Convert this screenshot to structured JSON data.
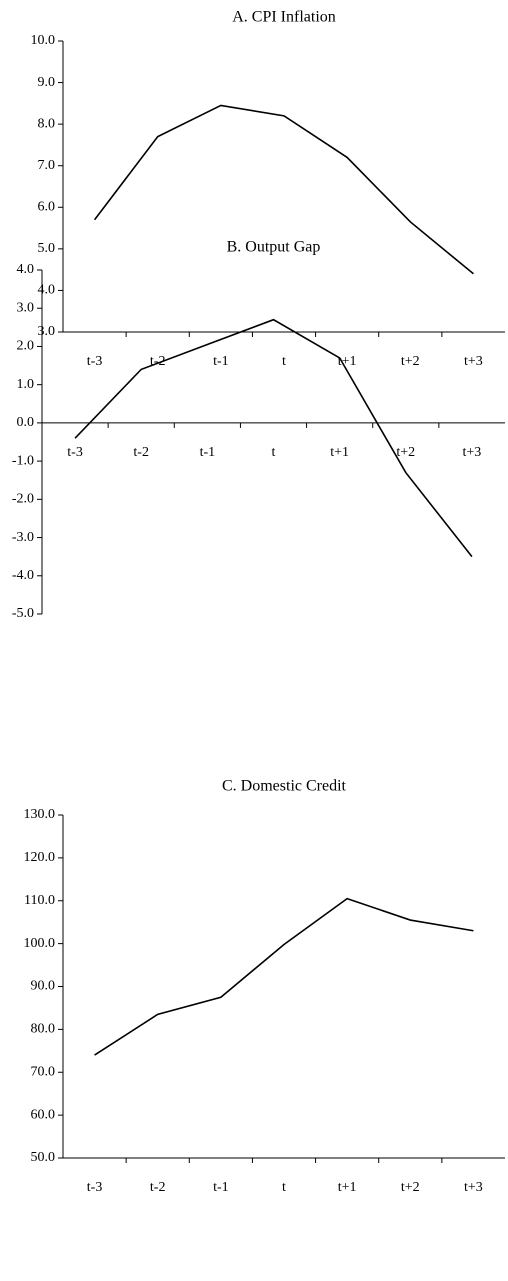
{
  "chart_data": [
    {
      "type": "line",
      "title": "A. CPI Inflation",
      "categories": [
        "t-3",
        "t-2",
        "t-1",
        "t",
        "t+1",
        "t+2",
        "t+3"
      ],
      "series": [
        {
          "name": "CPI Inflation",
          "color": "#000000",
          "values": [
            5.7,
            7.7,
            8.45,
            8.2,
            7.2,
            5.65,
            4.4
          ]
        }
      ],
      "ylim": [
        3,
        10
      ],
      "yticks": [
        {
          "value": 3,
          "label": "3.0"
        },
        {
          "value": 4,
          "label": "4.0"
        },
        {
          "value": 5,
          "label": "5.0"
        },
        {
          "value": 6,
          "label": "6.0"
        },
        {
          "value": 7,
          "label": "7.0"
        },
        {
          "value": 8,
          "label": "8.0"
        },
        {
          "value": 9,
          "label": "9.0"
        },
        {
          "value": 10,
          "label": "10.0"
        }
      ]
    },
    {
      "type": "line",
      "title": "B. Output Gap",
      "categories": [
        "t-3",
        "t-2",
        "t-1",
        "t",
        "t+1",
        "t+2",
        "t+3"
      ],
      "series": [
        {
          "name": "Output Gap",
          "color": "#000000",
          "values": [
            -0.4,
            1.4,
            2.05,
            2.7,
            1.7,
            -1.3,
            -3.5
          ]
        }
      ],
      "ylim": [
        -5,
        4
      ],
      "yticks": [
        {
          "value": -5,
          "label": "-5.0"
        },
        {
          "value": -4,
          "label": "-4.0"
        },
        {
          "value": -3,
          "label": "-3.0"
        },
        {
          "value": -2,
          "label": "-2.0"
        },
        {
          "value": -1,
          "label": "-1.0"
        },
        {
          "value": 0,
          "label": "0.0"
        },
        {
          "value": 1,
          "label": "1.0"
        },
        {
          "value": 2,
          "label": "2.0"
        },
        {
          "value": 3,
          "label": "3.0"
        },
        {
          "value": 4,
          "label": "4.0"
        }
      ]
    },
    {
      "type": "line",
      "title": "C. Domestic Credit",
      "categories": [
        "t-3",
        "t-2",
        "t-1",
        "t",
        "t+1",
        "t+2",
        "t+3"
      ],
      "series": [
        {
          "name": "Domestic Credit",
          "color": "#000000",
          "values": [
            74,
            83.5,
            87.5,
            99.8,
            110.5,
            105.5,
            103
          ]
        }
      ],
      "ylim": [
        50,
        130
      ],
      "yticks": [
        {
          "value": 50,
          "label": "50.0"
        },
        {
          "value": 60,
          "label": "60.0"
        },
        {
          "value": 70,
          "label": "70.0"
        },
        {
          "value": 80,
          "label": "80.0"
        },
        {
          "value": 90,
          "label": "90.0"
        },
        {
          "value": 100,
          "label": "100.0"
        },
        {
          "value": 110,
          "label": "110.0"
        },
        {
          "value": 120,
          "label": "120.0"
        },
        {
          "value": 130,
          "label": "130.0"
        }
      ]
    }
  ]
}
